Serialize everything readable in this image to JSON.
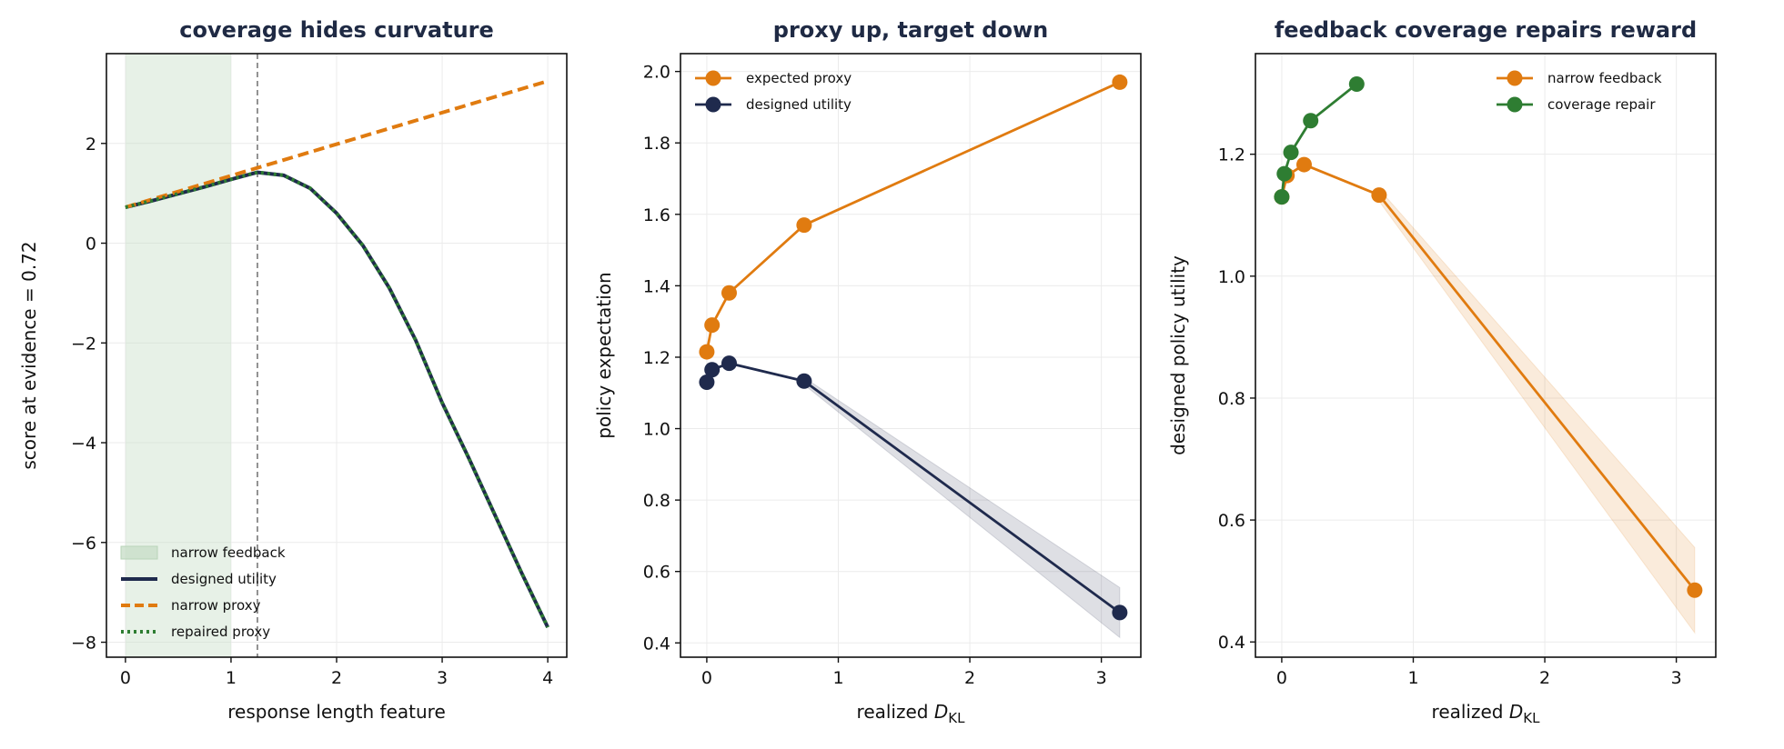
{
  "colors": {
    "proxy": "#e07b10",
    "utility": "#1f2a4d",
    "repair": "#2e7d32",
    "shade": "#c9dfc9",
    "grid": "#ebebeb"
  },
  "chart_data": [
    {
      "type": "line",
      "title": "coverage hides curvature",
      "xlabel": "response length feature",
      "ylabel": "score at evidence = 0.72",
      "xlim": [
        -0.18,
        4.18
      ],
      "ylim": [
        -8.3,
        3.8
      ],
      "xticks": [
        0,
        1,
        2,
        3,
        4
      ],
      "yticks": [
        -8,
        -6,
        -4,
        -2,
        0,
        2
      ],
      "xtick_labels": [
        "0",
        "1",
        "2",
        "3",
        "4"
      ],
      "ytick_labels": [
        "−8",
        "−6",
        "−4",
        "−2",
        "0",
        "2"
      ],
      "shaded_region": {
        "x": [
          0,
          1
        ],
        "label": "narrow feedback"
      },
      "vline": 1.25,
      "series": [
        {
          "name": "designed utility",
          "style": "solid",
          "color": "#1f2a4d",
          "x": [
            0,
            0.25,
            0.5,
            0.75,
            1,
            1.25,
            1.5,
            1.75,
            2,
            2.25,
            2.5,
            2.75,
            3,
            3.25,
            3.5,
            3.75,
            4
          ],
          "y": [
            0.72,
            0.85,
            0.99,
            1.13,
            1.28,
            1.42,
            1.36,
            1.1,
            0.6,
            -0.05,
            -0.9,
            -1.95,
            -3.2,
            -4.3,
            -5.45,
            -6.6,
            -7.7
          ]
        },
        {
          "name": "narrow proxy",
          "style": "dashed",
          "color": "#e07b10",
          "x": [
            0,
            4
          ],
          "y": [
            0.72,
            3.25
          ]
        },
        {
          "name": "repaired proxy",
          "style": "dotted",
          "color": "#2e7d32",
          "x": [
            0,
            0.25,
            0.5,
            0.75,
            1,
            1.25,
            1.5,
            1.75,
            2,
            2.25,
            2.5,
            2.75,
            3,
            3.25,
            3.5,
            3.75,
            4
          ],
          "y": [
            0.72,
            0.85,
            0.99,
            1.13,
            1.28,
            1.42,
            1.36,
            1.1,
            0.6,
            -0.05,
            -0.9,
            -1.95,
            -3.2,
            -4.3,
            -5.45,
            -6.6,
            -7.7
          ]
        }
      ],
      "legend": "lower-left"
    },
    {
      "type": "line",
      "title": "proxy up, target down",
      "xlabel": "realized D_KL",
      "ylabel": "policy expectation",
      "xlim": [
        -0.2,
        3.3
      ],
      "ylim": [
        0.36,
        2.05
      ],
      "xticks": [
        0,
        1,
        2,
        3
      ],
      "yticks": [
        0.4,
        0.6,
        0.8,
        1.0,
        1.2,
        1.4,
        1.6,
        1.8,
        2.0
      ],
      "xtick_labels": [
        "0",
        "1",
        "2",
        "3"
      ],
      "ytick_labels": [
        "0.4",
        "0.6",
        "0.8",
        "1.0",
        "1.2",
        "1.4",
        "1.6",
        "1.8",
        "2.0"
      ],
      "series": [
        {
          "name": "expected proxy",
          "color": "#e07b10",
          "x": [
            0,
            0.04,
            0.17,
            0.74,
            3.14
          ],
          "y": [
            1.215,
            1.29,
            1.38,
            1.57,
            1.97
          ]
        },
        {
          "name": "designed utility",
          "color": "#1f2a4d",
          "x": [
            0,
            0.04,
            0.17,
            0.74,
            3.14
          ],
          "y": [
            1.13,
            1.165,
            1.183,
            1.133,
            0.485
          ],
          "band": {
            "x": [
              0.74,
              3.14
            ],
            "lower": [
              1.123,
              0.415
            ],
            "upper": [
              1.143,
              0.555
            ]
          }
        }
      ],
      "legend": "top-left"
    },
    {
      "type": "line",
      "title": "feedback coverage repairs reward",
      "xlabel": "realized D_KL",
      "ylabel": "designed policy utility",
      "xlim": [
        -0.2,
        3.3
      ],
      "ylim": [
        0.375,
        1.365
      ],
      "xticks": [
        0,
        1,
        2,
        3
      ],
      "yticks": [
        0.4,
        0.6,
        0.8,
        1.0,
        1.2
      ],
      "xtick_labels": [
        "0",
        "1",
        "2",
        "3"
      ],
      "ytick_labels": [
        "0.4",
        "0.6",
        "0.8",
        "1.0",
        "1.2"
      ],
      "series": [
        {
          "name": "narrow feedback",
          "color": "#e07b10",
          "x": [
            0,
            0.04,
            0.17,
            0.74,
            3.14
          ],
          "y": [
            1.13,
            1.165,
            1.183,
            1.133,
            0.485
          ],
          "band": {
            "x": [
              0.74,
              3.14
            ],
            "lower": [
              1.123,
              0.415
            ],
            "upper": [
              1.143,
              0.555
            ]
          }
        },
        {
          "name": "coverage repair",
          "color": "#2e7d32",
          "x": [
            0,
            0.02,
            0.07,
            0.22,
            0.57
          ],
          "y": [
            1.13,
            1.168,
            1.203,
            1.255,
            1.315
          ]
        }
      ],
      "legend": "top-right"
    }
  ]
}
